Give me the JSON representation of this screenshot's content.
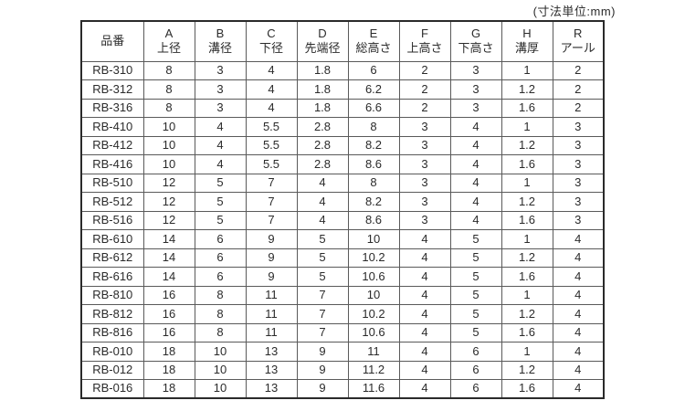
{
  "unit_label": "(寸法単位:mm)",
  "table": {
    "product_col_header": "品番",
    "columns": [
      {
        "letter": "A",
        "label": "上径"
      },
      {
        "letter": "B",
        "label": "溝径"
      },
      {
        "letter": "C",
        "label": "下径"
      },
      {
        "letter": "D",
        "label": "先端径"
      },
      {
        "letter": "E",
        "label": "総高さ"
      },
      {
        "letter": "F",
        "label": "上高さ"
      },
      {
        "letter": "G",
        "label": "下高さ"
      },
      {
        "letter": "H",
        "label": "溝厚"
      },
      {
        "letter": "R",
        "label": "アール"
      }
    ],
    "rows": [
      {
        "name": "RB-310",
        "values": [
          "8",
          "3",
          "4",
          "1.8",
          "6",
          "2",
          "3",
          "1",
          "2"
        ]
      },
      {
        "name": "RB-312",
        "values": [
          "8",
          "3",
          "4",
          "1.8",
          "6.2",
          "2",
          "3",
          "1.2",
          "2"
        ]
      },
      {
        "name": "RB-316",
        "values": [
          "8",
          "3",
          "4",
          "1.8",
          "6.6",
          "2",
          "3",
          "1.6",
          "2"
        ]
      },
      {
        "name": "RB-410",
        "values": [
          "10",
          "4",
          "5.5",
          "2.8",
          "8",
          "3",
          "4",
          "1",
          "3"
        ]
      },
      {
        "name": "RB-412",
        "values": [
          "10",
          "4",
          "5.5",
          "2.8",
          "8.2",
          "3",
          "4",
          "1.2",
          "3"
        ]
      },
      {
        "name": "RB-416",
        "values": [
          "10",
          "4",
          "5.5",
          "2.8",
          "8.6",
          "3",
          "4",
          "1.6",
          "3"
        ]
      },
      {
        "name": "RB-510",
        "values": [
          "12",
          "5",
          "7",
          "4",
          "8",
          "3",
          "4",
          "1",
          "3"
        ]
      },
      {
        "name": "RB-512",
        "values": [
          "12",
          "5",
          "7",
          "4",
          "8.2",
          "3",
          "4",
          "1.2",
          "3"
        ]
      },
      {
        "name": "RB-516",
        "values": [
          "12",
          "5",
          "7",
          "4",
          "8.6",
          "3",
          "4",
          "1.6",
          "3"
        ]
      },
      {
        "name": "RB-610",
        "values": [
          "14",
          "6",
          "9",
          "5",
          "10",
          "4",
          "5",
          "1",
          "4"
        ]
      },
      {
        "name": "RB-612",
        "values": [
          "14",
          "6",
          "9",
          "5",
          "10.2",
          "4",
          "5",
          "1.2",
          "4"
        ]
      },
      {
        "name": "RB-616",
        "values": [
          "14",
          "6",
          "9",
          "5",
          "10.6",
          "4",
          "5",
          "1.6",
          "4"
        ]
      },
      {
        "name": "RB-810",
        "values": [
          "16",
          "8",
          "11",
          "7",
          "10",
          "4",
          "5",
          "1",
          "4"
        ]
      },
      {
        "name": "RB-812",
        "values": [
          "16",
          "8",
          "11",
          "7",
          "10.2",
          "4",
          "5",
          "1.2",
          "4"
        ]
      },
      {
        "name": "RB-816",
        "values": [
          "16",
          "8",
          "11",
          "7",
          "10.6",
          "4",
          "5",
          "1.6",
          "4"
        ]
      },
      {
        "name": "RB-010",
        "values": [
          "18",
          "10",
          "13",
          "9",
          "11",
          "4",
          "6",
          "1",
          "4"
        ]
      },
      {
        "name": "RB-012",
        "values": [
          "18",
          "10",
          "13",
          "9",
          "11.2",
          "4",
          "6",
          "1.2",
          "4"
        ]
      },
      {
        "name": "RB-016",
        "values": [
          "18",
          "10",
          "13",
          "9",
          "11.6",
          "4",
          "6",
          "1.6",
          "4"
        ]
      }
    ]
  }
}
